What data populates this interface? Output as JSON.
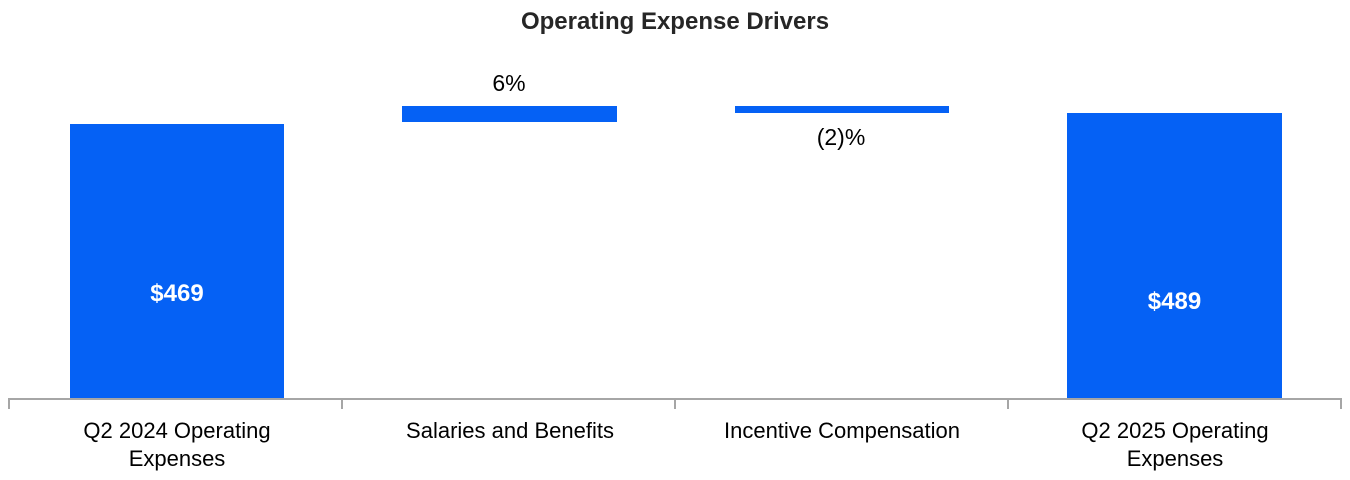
{
  "title": "Operating Expense Drivers",
  "chart_data": {
    "type": "bar",
    "subtype": "waterfall-bridge",
    "title": "Operating Expense Drivers",
    "xlabel": "",
    "ylabel": "",
    "value_axis_visible": false,
    "grid": false,
    "legend": "none",
    "baseline": 0,
    "categories": [
      "Q2 2024 Operating Expenses",
      "Salaries and Benefits",
      "Incentive Compensation",
      "Q2 2025 Operating Expenses"
    ],
    "bars": [
      {
        "category": "Q2 2024 Operating Expenses",
        "label": "$469",
        "value": 469,
        "role": "total",
        "segment_from": 0,
        "segment_to": 469,
        "label_placement": "inside"
      },
      {
        "category": "Salaries and Benefits",
        "label": "6%",
        "change_pct": 6,
        "role": "increase",
        "segment_from": 469,
        "segment_to": 497,
        "label_placement": "above"
      },
      {
        "category": "Incentive Compensation",
        "label": "(2)%",
        "change_pct": -2,
        "role": "decrease",
        "segment_from": 497,
        "segment_to": 489,
        "label_placement": "below"
      },
      {
        "category": "Q2 2025 Operating Expenses",
        "label": "$489",
        "value": 489,
        "role": "total",
        "segment_from": 0,
        "segment_to": 489,
        "label_placement": "inside"
      }
    ],
    "colors": {
      "bar_fill": "#0561F5",
      "axis_line": "#A6A6A6",
      "inside_label_text": "#FFFFFF",
      "outside_label_text": "#000000",
      "title_text": "#262626"
    }
  }
}
